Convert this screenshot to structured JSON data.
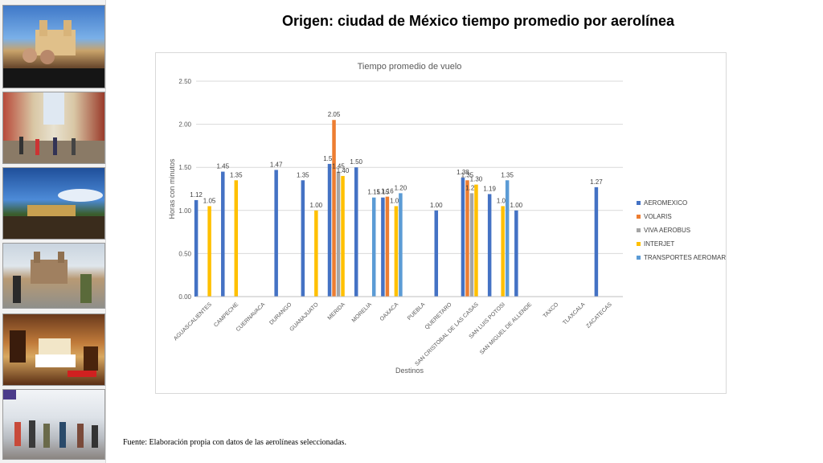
{
  "slide": {
    "title": "Origen: ciudad de México tiempo promedio por aerolínea",
    "footnote": "Fuente: Elaboración propia con datos de las aerolíneas seleccionadas.",
    "photos": [
      "cathedral-couple-photo",
      "colonial-street-photo",
      "terrace-night-photo",
      "church-plaza-photo",
      "hotel-room-photo",
      "mall-crowd-photo"
    ]
  },
  "chart_data": {
    "type": "bar",
    "title": "Tiempo promedio de vuelo",
    "xlabel": "Destinos",
    "ylabel": "Horas con minutos",
    "ylim": [
      0,
      2.5
    ],
    "yticks": [
      "0.00",
      "0.50",
      "1.00",
      "1.50",
      "2.00",
      "2.50"
    ],
    "grid": true,
    "legend_position": "right",
    "categories": [
      "AGUASCALIENTES",
      "CAMPECHE",
      "CUERNAVACA",
      "DURANGO",
      "GUANAJUATO",
      "MERIDA",
      "MORELIA",
      "OAXACA",
      "PUEBLA",
      "QUERETARO",
      "SAN CRISTOBAL DE LAS CASAS",
      "SAN LUIS POTOSI",
      "SAN MIGUEL DE ALLENDE",
      "TAXCO",
      "TLAXCALA",
      "ZACATECAS"
    ],
    "series": [
      {
        "name": "AEROMEXICO",
        "color": "#4472C4",
        "values": [
          1.12,
          1.45,
          null,
          1.47,
          1.35,
          1.54,
          1.5,
          1.15,
          null,
          1.0,
          1.38,
          1.19,
          1.0,
          null,
          null,
          1.27
        ],
        "labels": [
          "1.12",
          "1.45",
          "",
          "1.47",
          "1.35",
          "1.54",
          "1.50",
          "1.15",
          "",
          "1.00",
          "1.38",
          "1.19",
          "1.00",
          "",
          "",
          "1.27"
        ]
      },
      {
        "name": "VOLARIS",
        "color": "#ED7D31",
        "values": [
          null,
          null,
          null,
          null,
          null,
          2.05,
          null,
          1.16,
          null,
          null,
          1.35,
          null,
          null,
          null,
          null,
          null
        ],
        "labels": [
          "",
          "",
          "",
          "",
          "",
          "2.05",
          "",
          "1.16",
          "",
          "",
          "1.35",
          "",
          "",
          "",
          "",
          ""
        ]
      },
      {
        "name": "VIVA AEROBUS",
        "color": "#A5A5A5",
        "values": [
          null,
          null,
          null,
          null,
          null,
          1.45,
          null,
          null,
          null,
          null,
          1.2,
          null,
          null,
          null,
          null,
          null
        ],
        "labels": [
          "",
          "",
          "",
          "",
          "",
          "1.45",
          "",
          "",
          "",
          "",
          "1.20",
          "",
          "",
          "",
          "",
          ""
        ]
      },
      {
        "name": "INTERJET",
        "color": "#FFC000",
        "values": [
          1.05,
          1.35,
          null,
          null,
          1.0,
          1.4,
          null,
          1.05,
          null,
          null,
          1.3,
          1.05,
          null,
          null,
          null,
          null
        ],
        "labels": [
          "1.05",
          "1.35",
          "",
          "",
          "1.00",
          "1.40",
          "",
          "1.05",
          "",
          "",
          "1.30",
          "1.05",
          "",
          "",
          "",
          ""
        ]
      },
      {
        "name": "TRANSPORTES AEROMAR",
        "color": "#5B9BD5",
        "values": [
          null,
          null,
          null,
          null,
          null,
          null,
          1.15,
          1.2,
          null,
          null,
          null,
          1.35,
          null,
          null,
          null,
          null
        ],
        "labels": [
          "",
          "",
          "",
          "",
          "",
          "",
          "1.15",
          "1.20",
          "",
          "",
          "",
          "1.35",
          "",
          "",
          "",
          ""
        ]
      }
    ]
  }
}
